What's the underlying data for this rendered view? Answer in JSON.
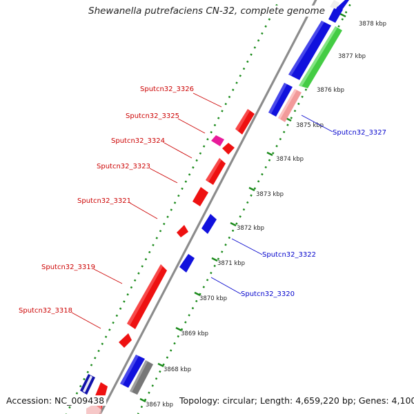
{
  "title": "Shewanella putrefaciens CN-32, complete genome",
  "footer": {
    "accession": "Accession: NC_009438",
    "summary": "Topology: circular; Length: 4,659,220 bp; Genes: 4,100"
  },
  "colors": {
    "forward_gene": "#ee1111",
    "reverse_gene": "#1111dd",
    "other_a": "#44cc44",
    "other_b": "#e81b9a",
    "other_c": "#f29a9a",
    "other_d": "#777777",
    "tick": "#1a8a1a",
    "backbone": "#8c8c8c",
    "forward_label": "#cc0000",
    "reverse_label": "#0000cc"
  },
  "ticks": [
    {
      "label": "3867 kbp",
      "value": 3867
    },
    {
      "label": "3868 kbp",
      "value": 3868
    },
    {
      "label": "3869 kbp",
      "value": 3869
    },
    {
      "label": "3870 kbp",
      "value": 3870
    },
    {
      "label": "3871 kbp",
      "value": 3871
    },
    {
      "label": "3872 kbp",
      "value": 3872
    },
    {
      "label": "3873 kbp",
      "value": 3873
    },
    {
      "label": "3874 kbp",
      "value": 3874
    },
    {
      "label": "3875 kbp",
      "value": 3875
    },
    {
      "label": "3876 kbp",
      "value": 3876
    },
    {
      "label": "3877 kbp",
      "value": 3877
    },
    {
      "label": "3878 kbp",
      "value": 3878
    }
  ],
  "labels": [
    {
      "text": "Sputcn32_3326",
      "strand": "forward"
    },
    {
      "text": "Sputcn32_3325",
      "strand": "forward"
    },
    {
      "text": "Sputcn32_3324",
      "strand": "forward"
    },
    {
      "text": "Sputcn32_3323",
      "strand": "forward"
    },
    {
      "text": "Sputcn32_3321",
      "strand": "forward"
    },
    {
      "text": "Sputcn32_3319",
      "strand": "forward"
    },
    {
      "text": "Sputcn32_3318",
      "strand": "forward"
    },
    {
      "text": "Sputcn32_3327",
      "strand": "reverse"
    },
    {
      "text": "Sputcn32_3322",
      "strand": "reverse"
    },
    {
      "text": "Sputcn32_3320",
      "strand": "reverse"
    }
  ]
}
